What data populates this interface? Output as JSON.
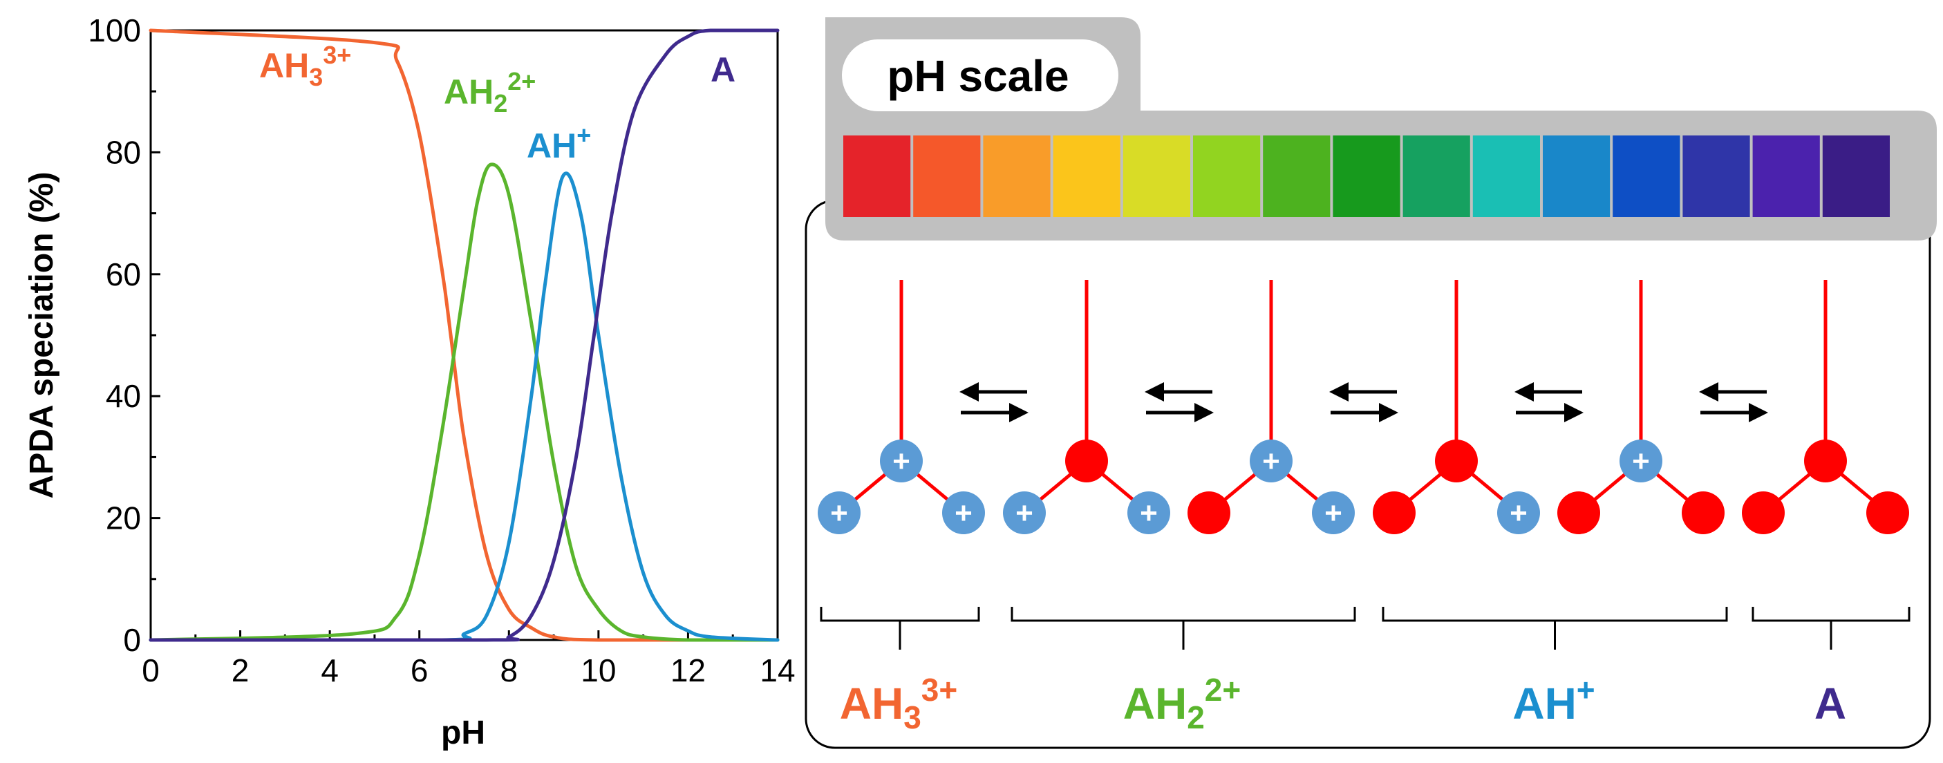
{
  "chart_data": {
    "type": "line",
    "title": "",
    "xlabel": "pH",
    "ylabel": "APDA speciation (%)",
    "xlim": [
      0,
      14
    ],
    "ylim": [
      0,
      100
    ],
    "x_ticks": [
      0,
      2,
      4,
      6,
      8,
      10,
      12,
      14
    ],
    "y_ticks": [
      0,
      20,
      40,
      60,
      80,
      100
    ],
    "grid": false,
    "pKa": [
      6.7,
      8.5,
      9.9
    ],
    "series": [
      {
        "name": "AH3 3+",
        "base": "AH",
        "sub": "3",
        "sup": "3+",
        "color": "#f26531",
        "x": [
          0,
          5.0,
          5.5,
          6.0,
          6.5,
          6.7,
          7.0,
          7.5,
          8.0,
          8.5,
          9.0,
          10.0,
          14
        ],
        "values": [
          100,
          98,
          95,
          83,
          61,
          50,
          33,
          14,
          5,
          2,
          0.5,
          0,
          0
        ]
      },
      {
        "name": "AH2 2+",
        "base": "AH",
        "sub": "2",
        "sup": "2+",
        "color": "#5ab52d",
        "x": [
          0,
          4.5,
          5.5,
          6.0,
          6.5,
          7.0,
          7.3,
          7.6,
          8.0,
          8.5,
          9.0,
          9.5,
          10.0,
          10.5,
          11.0,
          12.0,
          14
        ],
        "values": [
          0,
          1,
          4,
          14,
          34,
          58,
          72,
          78,
          73,
          52,
          29,
          12,
          5,
          1.5,
          0.5,
          0,
          0
        ]
      },
      {
        "name": "AH+",
        "base": "AH",
        "sub": "",
        "sup": "+",
        "color": "#1b8fcf",
        "x": [
          0,
          6.5,
          7.0,
          7.5,
          8.0,
          8.5,
          8.8,
          9.2,
          9.6,
          10.0,
          10.5,
          11.0,
          11.5,
          12.0,
          12.5,
          14
        ],
        "values": [
          0,
          0,
          1,
          4,
          16,
          40,
          58,
          76,
          70,
          50,
          27,
          11,
          4,
          1.5,
          0.5,
          0
        ]
      },
      {
        "name": "A",
        "base": "A",
        "sub": "",
        "sup": "",
        "color": "#3f2a8d",
        "x": [
          0,
          7.5,
          8.0,
          8.5,
          9.0,
          9.5,
          9.9,
          10.3,
          10.8,
          11.5,
          12.0,
          12.5,
          14
        ],
        "values": [
          0,
          0,
          0.5,
          4,
          13,
          30,
          50,
          70,
          87,
          96,
          99,
          100,
          100
        ]
      }
    ]
  },
  "ph_scale": {
    "title": "pH scale",
    "colors": [
      "#e5232a",
      "#f5582a",
      "#f99c29",
      "#fbc51b",
      "#d9dc26",
      "#92d420",
      "#4db21f",
      "#179a1d",
      "#16a160",
      "#1abfb4",
      "#1987c9",
      "#0e4fc5",
      "#2f35a8",
      "#4b22ad",
      "#3a1d86"
    ]
  },
  "species": {
    "positive_sign": "+",
    "charged_color": "#5b9bd5",
    "neutral_color": "#ff0000",
    "chain_color": "#ff0000",
    "molecules": [
      {
        "top": "charged",
        "left": "charged",
        "right": "charged"
      },
      {
        "top": "neutral",
        "left": "charged",
        "right": "charged"
      },
      {
        "top": "charged",
        "left": "neutral",
        "right": "charged"
      },
      {
        "top": "neutral",
        "left": "neutral",
        "right": "charged"
      },
      {
        "top": "charged",
        "left": "neutral",
        "right": "neutral"
      },
      {
        "top": "neutral",
        "left": "neutral",
        "right": "neutral"
      }
    ],
    "groups": [
      {
        "base": "AH",
        "sub": "3",
        "sup": "3+",
        "color": "#f26531"
      },
      {
        "base": "AH",
        "sub": "2",
        "sup": "2+",
        "color": "#5ab52d"
      },
      {
        "base": "AH",
        "sub": "",
        "sup": "+",
        "color": "#1b8fcf"
      },
      {
        "base": "A",
        "sub": "",
        "sup": "",
        "color": "#3f2a8d"
      }
    ]
  }
}
